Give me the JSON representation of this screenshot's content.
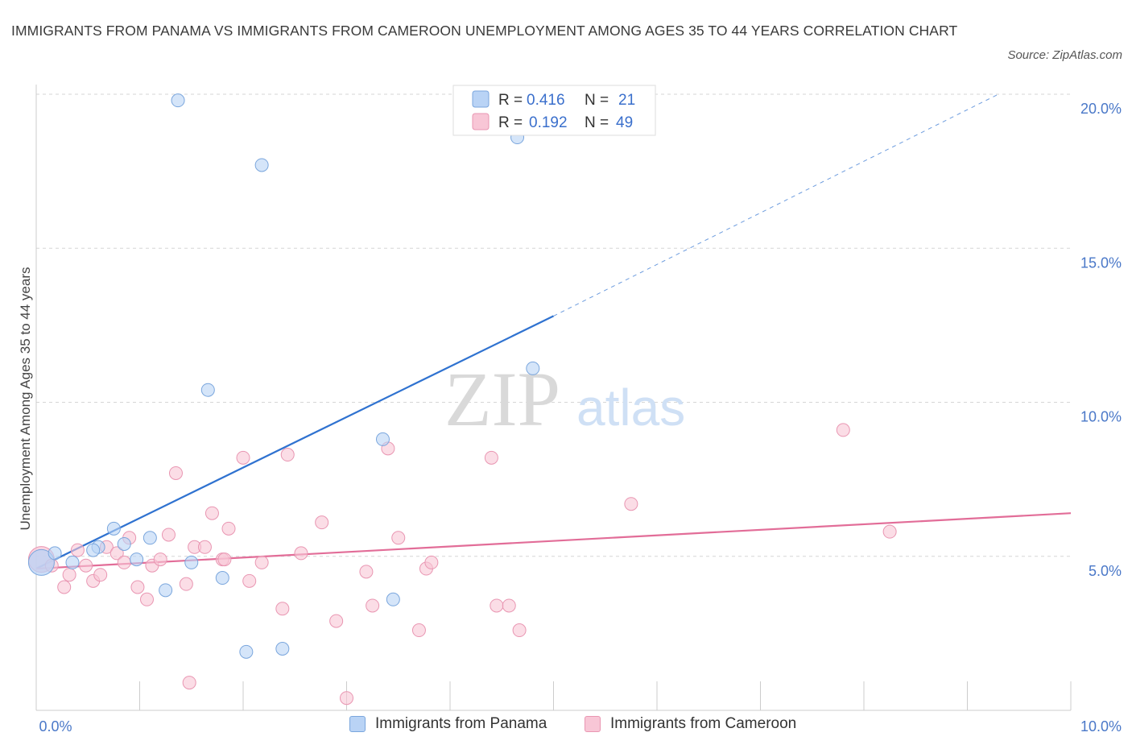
{
  "header": {
    "title": "IMMIGRANTS FROM PANAMA VS IMMIGRANTS FROM CAMEROON UNEMPLOYMENT AMONG AGES 35 TO 44 YEARS CORRELATION CHART",
    "source": "Source: ZipAtlas.com"
  },
  "watermark": {
    "zip": "ZIP",
    "atlas": "atlas"
  },
  "colors": {
    "panama_fill": "#b9d3f5",
    "panama_stroke": "#7aa6dd",
    "panama_line": "#2f72d0",
    "cameroon_fill": "#f8c6d6",
    "cameroon_stroke": "#e996b2",
    "cameroon_line": "#e26d98",
    "axis_label": "#4a78c8",
    "grid": "#d6d6d6"
  },
  "chart_data": {
    "type": "scatter",
    "title": "IMMIGRANTS FROM PANAMA VS IMMIGRANTS FROM CAMEROON UNEMPLOYMENT AMONG AGES 35 TO 44 YEARS CORRELATION CHART",
    "xlabel": "",
    "ylabel": "Unemployment Among Ages 35 to 44 years",
    "xlim": [
      0,
      10
    ],
    "ylim": [
      0,
      20
    ],
    "x_tick_labels": [
      "0.0%",
      "10.0%"
    ],
    "y_ticks": [
      5,
      10,
      15,
      20
    ],
    "y_tick_labels": [
      "5.0%",
      "10.0%",
      "15.0%",
      "20.0%"
    ],
    "grid": true,
    "legend_position": "top-center",
    "series": [
      {
        "name": "Immigrants from Panama",
        "R": "0.416",
        "N": "21",
        "trend": {
          "x": [
            0,
            5
          ],
          "y": [
            4.6,
            12.8
          ],
          "dashed_to": [
            9.3,
            20.0
          ]
        },
        "points": [
          {
            "x": 0.05,
            "y": 4.8,
            "big": true
          },
          {
            "x": 0.18,
            "y": 5.1
          },
          {
            "x": 0.35,
            "y": 4.8
          },
          {
            "x": 0.6,
            "y": 5.3
          },
          {
            "x": 0.75,
            "y": 5.9
          },
          {
            "x": 0.85,
            "y": 5.4
          },
          {
            "x": 0.97,
            "y": 4.9
          },
          {
            "x": 1.1,
            "y": 5.6
          },
          {
            "x": 1.25,
            "y": 3.9
          },
          {
            "x": 1.5,
            "y": 4.8
          },
          {
            "x": 1.66,
            "y": 10.4
          },
          {
            "x": 1.8,
            "y": 4.3
          },
          {
            "x": 1.37,
            "y": 19.8
          },
          {
            "x": 2.18,
            "y": 17.7
          },
          {
            "x": 2.03,
            "y": 1.9
          },
          {
            "x": 2.38,
            "y": 2.0
          },
          {
            "x": 3.35,
            "y": 8.8
          },
          {
            "x": 3.45,
            "y": 3.6
          },
          {
            "x": 4.65,
            "y": 18.6
          },
          {
            "x": 4.8,
            "y": 11.1
          },
          {
            "x": 0.55,
            "y": 5.2
          }
        ]
      },
      {
        "name": "Immigrants from Cameroon",
        "R": "0.192",
        "N": "49",
        "trend": {
          "x": [
            0,
            10
          ],
          "y": [
            4.6,
            6.4
          ]
        },
        "points": [
          {
            "x": 0.05,
            "y": 4.9,
            "big": true
          },
          {
            "x": 0.27,
            "y": 4.0
          },
          {
            "x": 0.32,
            "y": 4.4
          },
          {
            "x": 0.4,
            "y": 5.2
          },
          {
            "x": 0.48,
            "y": 4.7
          },
          {
            "x": 0.55,
            "y": 4.2
          },
          {
            "x": 0.62,
            "y": 4.4
          },
          {
            "x": 0.68,
            "y": 5.3
          },
          {
            "x": 0.78,
            "y": 5.1
          },
          {
            "x": 0.85,
            "y": 4.8
          },
          {
            "x": 0.9,
            "y": 5.6
          },
          {
            "x": 0.98,
            "y": 4.0
          },
          {
            "x": 1.07,
            "y": 3.6
          },
          {
            "x": 1.12,
            "y": 4.7
          },
          {
            "x": 1.2,
            "y": 4.9
          },
          {
            "x": 1.28,
            "y": 5.7
          },
          {
            "x": 1.35,
            "y": 7.7
          },
          {
            "x": 1.45,
            "y": 4.1
          },
          {
            "x": 1.48,
            "y": 0.9
          },
          {
            "x": 1.53,
            "y": 5.3
          },
          {
            "x": 1.63,
            "y": 5.3
          },
          {
            "x": 1.7,
            "y": 6.4
          },
          {
            "x": 1.8,
            "y": 4.9
          },
          {
            "x": 1.86,
            "y": 5.9
          },
          {
            "x": 2.0,
            "y": 8.2
          },
          {
            "x": 2.06,
            "y": 4.2
          },
          {
            "x": 2.18,
            "y": 4.8
          },
          {
            "x": 2.38,
            "y": 3.3
          },
          {
            "x": 2.43,
            "y": 8.3
          },
          {
            "x": 2.56,
            "y": 5.1
          },
          {
            "x": 2.76,
            "y": 6.1
          },
          {
            "x": 2.9,
            "y": 2.9
          },
          {
            "x": 3.0,
            "y": 0.4
          },
          {
            "x": 3.19,
            "y": 4.5
          },
          {
            "x": 3.25,
            "y": 3.4
          },
          {
            "x": 3.4,
            "y": 8.5
          },
          {
            "x": 3.5,
            "y": 5.6
          },
          {
            "x": 3.7,
            "y": 2.6
          },
          {
            "x": 3.77,
            "y": 4.6
          },
          {
            "x": 3.82,
            "y": 4.8
          },
          {
            "x": 4.4,
            "y": 8.2
          },
          {
            "x": 4.45,
            "y": 3.4
          },
          {
            "x": 4.57,
            "y": 3.4
          },
          {
            "x": 4.67,
            "y": 2.6
          },
          {
            "x": 5.75,
            "y": 6.7
          },
          {
            "x": 7.8,
            "y": 9.1
          },
          {
            "x": 8.25,
            "y": 5.8
          },
          {
            "x": 0.15,
            "y": 4.7
          },
          {
            "x": 1.82,
            "y": 4.9
          }
        ]
      }
    ]
  },
  "legend": {
    "r_label": "R =",
    "n_label": "N =",
    "panama_r": "0.416",
    "panama_n": "21",
    "cameroon_r": "0.192",
    "cameroon_n": "49",
    "panama_name": "Immigrants from Panama",
    "cameroon_name": "Immigrants from Cameroon"
  }
}
